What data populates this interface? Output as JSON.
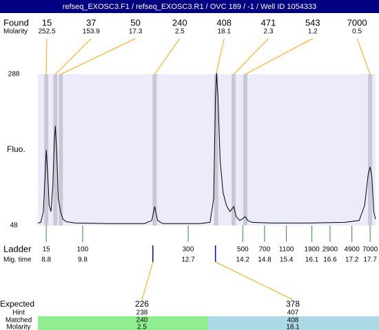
{
  "chart_data": {
    "type": "electropherogram",
    "title": "refseq_EXOSC3.F1 / refseq_EXOSC3.R1 / OVC 189 / -1 / Well ID 1054333",
    "found_label": "Found",
    "found_molarity_label": "Molarity",
    "ylabel": "Fluo.",
    "ladder_label": "Ladder",
    "mig_time_label": "Mig. time",
    "expected_label": "Expected",
    "hint_label": "Hint",
    "matched_label": "Matched",
    "matched_molarity_label": "Molarity",
    "xlim": [
      8.57,
      17.85
    ],
    "ylim": [
      48,
      288
    ],
    "yticks": [
      288,
      48
    ],
    "found": [
      {
        "size": 15,
        "molarity": 252.5,
        "time": 8.8
      },
      {
        "size": 37,
        "molarity": 153.9,
        "time": 9.05
      },
      {
        "size": 50,
        "molarity": 17.3,
        "time": 9.2
      },
      {
        "size": 240,
        "molarity": 2.5,
        "time": 11.78
      },
      {
        "size": 408,
        "molarity": 18.1,
        "time": 13.47
      },
      {
        "size": 471,
        "molarity": 2.3,
        "time": 13.95
      },
      {
        "size": 543,
        "molarity": 1.2,
        "time": 14.27
      },
      {
        "size": 7000,
        "molarity": 0.5,
        "time": 17.7
      }
    ],
    "ladder": [
      {
        "size": 15,
        "time": 8.8
      },
      {
        "size": 100,
        "time": 9.8
      },
      {
        "size": 300,
        "time": 12.7
      },
      {
        "size": 500,
        "time": 14.2
      },
      {
        "size": 700,
        "time": 14.8
      },
      {
        "size": 1100,
        "time": 15.4
      },
      {
        "size": 1900,
        "time": 16.1
      },
      {
        "size": 2900,
        "time": 16.6
      },
      {
        "size": 4900,
        "time": 17.2
      },
      {
        "size": 7000,
        "time": 17.7
      }
    ],
    "expected": [
      {
        "size": 226,
        "hint": 238,
        "matched": 240,
        "molarity": 2.5,
        "time": 11.73,
        "color": "#90ee90"
      },
      {
        "size": 378,
        "hint": 407,
        "matched": 408,
        "molarity": 18.1,
        "time": 13.45,
        "color": "#add8e6"
      }
    ],
    "trace": {
      "x": [
        8.57,
        8.65,
        8.72,
        8.77,
        8.8,
        8.84,
        8.88,
        8.93,
        8.98,
        9.02,
        9.05,
        9.09,
        9.13,
        9.2,
        9.26,
        9.35,
        9.6,
        10.5,
        11.5,
        11.7,
        11.78,
        11.86,
        12.0,
        13.0,
        13.3,
        13.4,
        13.45,
        13.48,
        13.52,
        13.58,
        13.66,
        13.75,
        13.85,
        13.95,
        14.02,
        14.12,
        14.22,
        14.27,
        14.34,
        14.45,
        15.0,
        16.0,
        17.0,
        17.4,
        17.55,
        17.65,
        17.7,
        17.75,
        17.8,
        17.85
      ],
      "y": [
        52,
        53,
        70,
        130,
        168,
        130,
        80,
        70,
        110,
        180,
        206,
        160,
        90,
        68,
        58,
        54,
        52,
        51,
        51,
        56,
        78,
        56,
        51,
        51,
        53,
        90,
        250,
        290,
        250,
        150,
        100,
        80,
        70,
        78,
        62,
        56,
        60,
        62,
        56,
        53,
        52,
        52,
        53,
        56,
        80,
        130,
        141,
        125,
        70,
        58
      ],
      "color": "#000000"
    },
    "plot_background": "#ebebfa",
    "band_color": "#c8c8d6",
    "connector_color": "#ffa500",
    "ladder_color": "#2e8b2e",
    "expected_marker_color": "#0000cc",
    "title_background": "#000080"
  }
}
